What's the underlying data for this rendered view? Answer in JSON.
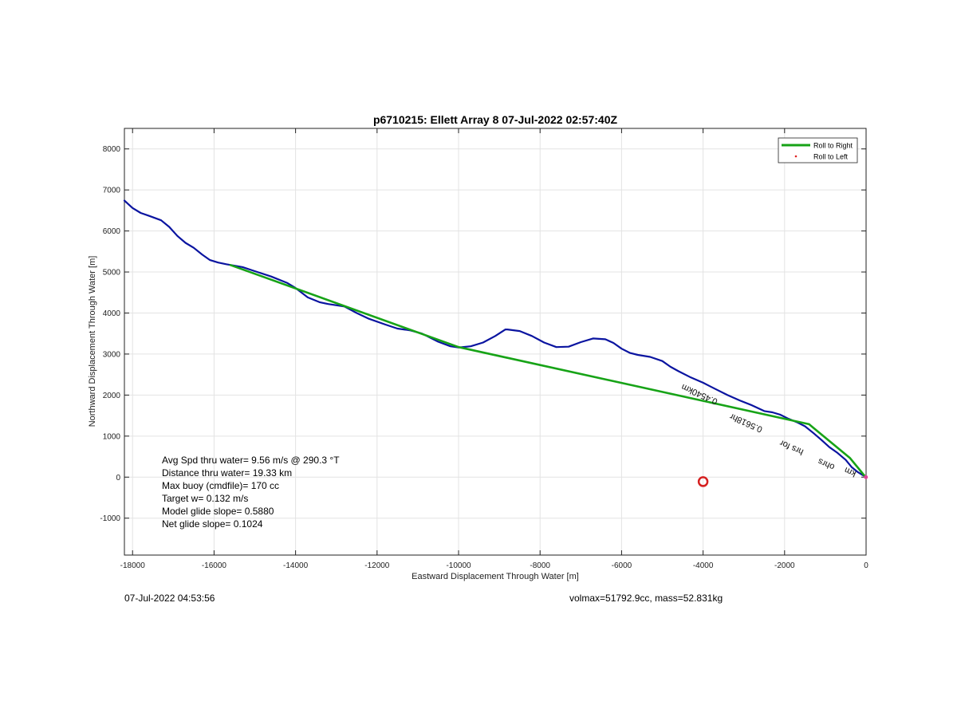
{
  "chart_data": {
    "type": "line",
    "title": "p6710215: Ellett Array 8 07-Jul-2022 02:57:40Z",
    "xlabel": "Eastward Displacement Through Water [m]",
    "ylabel": "Northward Displacement Through Water [m]",
    "xlim": [
      -18200,
      0
    ],
    "ylim": [
      -1900,
      8500
    ],
    "xticks": [
      -18000,
      -16000,
      -14000,
      -12000,
      -10000,
      -8000,
      -6000,
      -4000,
      -2000,
      0
    ],
    "yticks": [
      -1000,
      0,
      1000,
      2000,
      3000,
      4000,
      5000,
      6000,
      7000,
      8000
    ],
    "grid": true,
    "legend": {
      "location": "top-right",
      "entries": [
        {
          "label": "Roll to Right",
          "color": "#17a317",
          "style": "line"
        },
        {
          "label": "Roll to Left",
          "color": "#e02020",
          "style": "dot"
        }
      ]
    },
    "series": [
      {
        "color": "#0a14a0",
        "x": [
          -18200,
          -18000,
          -17800,
          -17600,
          -17300,
          -17100,
          -16900,
          -16700,
          -16500,
          -16300,
          -16100,
          -15900,
          -15700,
          -15300,
          -15000,
          -14600,
          -14200,
          -14000,
          -13700,
          -13400,
          -13200,
          -12800,
          -12500,
          -12200,
          -11800,
          -11500,
          -11200,
          -10900,
          -10500,
          -10200,
          -10000,
          -9700,
          -9400,
          -9100,
          -8850,
          -8800,
          -8500,
          -8200,
          -7900,
          -7600,
          -7300,
          -7000,
          -6700,
          -6400,
          -6200,
          -6000,
          -5800,
          -5600,
          -5300,
          -5000,
          -4800,
          -4600,
          -4300,
          -4000,
          -3700,
          -3400,
          -3100,
          -2800,
          -2500,
          -2300,
          -2100,
          -1900,
          -1700,
          -1500,
          -1300,
          -1100,
          -900,
          -700,
          -500,
          -350,
          -200,
          -100,
          -20
        ],
        "y": [
          6740,
          6560,
          6440,
          6370,
          6260,
          6100,
          5880,
          5710,
          5590,
          5430,
          5290,
          5230,
          5190,
          5120,
          5020,
          4890,
          4730,
          4610,
          4380,
          4260,
          4220,
          4160,
          4000,
          3860,
          3720,
          3620,
          3580,
          3500,
          3300,
          3190,
          3160,
          3190,
          3280,
          3440,
          3600,
          3600,
          3560,
          3440,
          3280,
          3170,
          3180,
          3290,
          3380,
          3360,
          3270,
          3130,
          3030,
          2980,
          2930,
          2830,
          2690,
          2580,
          2430,
          2300,
          2150,
          2000,
          1870,
          1750,
          1610,
          1580,
          1520,
          1420,
          1340,
          1240,
          1080,
          910,
          730,
          590,
          420,
          240,
          120,
          60,
          20
        ]
      },
      {
        "color": "#17a317",
        "x": [
          -15600,
          -10000,
          -4000,
          -1400,
          -400,
          -150,
          -60,
          -10
        ],
        "y": [
          5170,
          3170,
          1860,
          1290,
          470,
          170,
          60,
          10
        ]
      }
    ],
    "markers": [
      {
        "x": -4000,
        "y": -110,
        "color": "#d62020",
        "shape": "circle"
      },
      {
        "x": -5,
        "y": 0,
        "color": "#e0409a",
        "shape": "dot"
      }
    ],
    "stats": [
      "Avg Spd thru water=  9.56 m/s @ 290.3 °T",
      "Distance thru water= 19.33 km",
      "Max buoy (cmdfile)= 170 cc",
      "Target w= 0.132 m/s",
      "Model glide slope= 0.5880",
      "Net glide slope= 0.1024"
    ],
    "annotations": [
      {
        "text": "0.4540km",
        "x": -3630,
        "y": 1890
      },
      {
        "text": "0.5618hr",
        "x": -2530,
        "y": 1210
      },
      {
        "text": "hrs for",
        "x": -1520,
        "y": 660
      },
      {
        "text": "ohrs",
        "x": -760,
        "y": 290
      },
      {
        "text": "km",
        "x": -230,
        "y": 130
      }
    ]
  },
  "footer": {
    "timestamp": "07-Jul-2022 04:53:56",
    "vol_mass": "volmax=51792.9cc, mass=52.831kg"
  }
}
